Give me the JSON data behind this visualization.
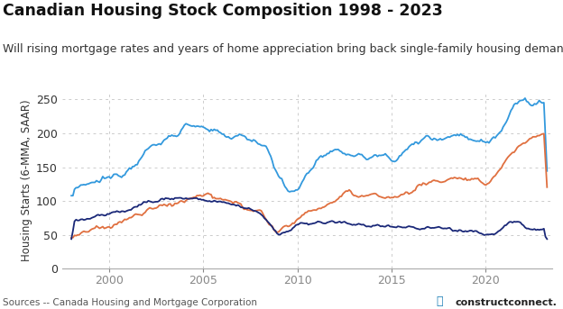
{
  "title": "Canadian Housing Stock Composition 1998 - 2023",
  "subtitle": "Will rising mortgage rates and years of home appreciation bring back single-family housing demand?",
  "ylabel": "Housing Starts (6‑MMA, SAAR)",
  "source": "Sources -- Canada Housing and Mortgage Corporation",
  "ylim": [
    0,
    260
  ],
  "yticks": [
    0,
    50,
    100,
    150,
    200,
    250
  ],
  "xlim_start": 1997.5,
  "xlim_end": 2023.5,
  "xticks": [
    2000,
    2005,
    2010,
    2015,
    2020
  ],
  "background_color": "#ffffff",
  "grid_color": "#cccccc",
  "color_multi": "#3399dd",
  "color_single": "#e07040",
  "color_dark": "#1a2878",
  "line_width": 1.3,
  "title_fontsize": 12.5,
  "subtitle_fontsize": 9,
  "ylabel_fontsize": 8.5,
  "tick_fontsize": 9,
  "source_fontsize": 7.5,
  "multi_knots": {
    "years": [
      1998.0,
      1998.5,
      1999.0,
      1999.5,
      2000.0,
      2001.0,
      2002.0,
      2003.0,
      2004.0,
      2004.5,
      2005.0,
      2005.5,
      2006.0,
      2006.5,
      2007.0,
      2007.5,
      2008.0,
      2008.5,
      2009.0,
      2009.5,
      2010.0,
      2010.5,
      2011.0,
      2011.5,
      2012.0,
      2012.5,
      2013.0,
      2013.5,
      2014.0,
      2014.5,
      2015.0,
      2015.5,
      2016.0,
      2016.5,
      2017.0,
      2017.5,
      2018.0,
      2018.5,
      2019.0,
      2019.5,
      2020.0,
      2020.5,
      2021.0,
      2021.5,
      2022.0,
      2022.5,
      2023.0
    ],
    "vals": [
      115,
      118,
      125,
      130,
      133,
      148,
      175,
      190,
      210,
      215,
      205,
      200,
      198,
      196,
      195,
      192,
      190,
      175,
      135,
      112,
      115,
      140,
      160,
      170,
      168,
      175,
      168,
      165,
      165,
      168,
      165,
      165,
      180,
      190,
      195,
      195,
      195,
      198,
      195,
      192,
      185,
      195,
      215,
      245,
      255,
      238,
      245
    ]
  },
  "single_knots": {
    "years": [
      1998.0,
      1998.5,
      1999.0,
      1999.5,
      2000.0,
      2001.0,
      2002.0,
      2003.0,
      2004.0,
      2004.5,
      2005.0,
      2005.5,
      2006.0,
      2006.5,
      2007.0,
      2007.5,
      2008.0,
      2008.5,
      2009.0,
      2009.5,
      2010.0,
      2010.5,
      2011.0,
      2011.5,
      2012.0,
      2012.5,
      2013.0,
      2013.5,
      2014.0,
      2014.5,
      2015.0,
      2015.5,
      2016.0,
      2016.5,
      2017.0,
      2017.5,
      2018.0,
      2018.5,
      2019.0,
      2019.5,
      2020.0,
      2020.5,
      2021.0,
      2021.5,
      2022.0,
      2022.5,
      2023.0
    ],
    "vals": [
      50,
      52,
      55,
      58,
      63,
      73,
      85,
      95,
      100,
      105,
      108,
      105,
      100,
      97,
      95,
      90,
      85,
      68,
      52,
      62,
      75,
      85,
      90,
      92,
      100,
      115,
      110,
      108,
      105,
      108,
      105,
      108,
      115,
      122,
      128,
      130,
      132,
      135,
      130,
      128,
      125,
      138,
      158,
      175,
      185,
      195,
      198
    ]
  },
  "dark_knots": {
    "years": [
      1998.0,
      1998.5,
      1999.0,
      1999.5,
      2000.0,
      2001.0,
      2002.0,
      2003.0,
      2004.0,
      2004.5,
      2005.0,
      2005.5,
      2006.0,
      2006.5,
      2007.0,
      2007.5,
      2008.0,
      2008.5,
      2009.0,
      2009.5,
      2010.0,
      2010.5,
      2011.0,
      2011.5,
      2012.0,
      2012.5,
      2013.0,
      2013.5,
      2014.0,
      2014.5,
      2015.0,
      2015.5,
      2016.0,
      2016.5,
      2017.0,
      2017.5,
      2018.0,
      2018.5,
      2019.0,
      2019.5,
      2020.0,
      2020.5,
      2021.0,
      2021.5,
      2022.0,
      2022.5,
      2023.0
    ],
    "vals": [
      72,
      73,
      75,
      78,
      80,
      88,
      98,
      103,
      105,
      104,
      102,
      100,
      98,
      95,
      92,
      88,
      82,
      68,
      50,
      55,
      65,
      67,
      68,
      68,
      67,
      67,
      66,
      65,
      64,
      63,
      62,
      61,
      60,
      60,
      60,
      59,
      59,
      58,
      57,
      55,
      50,
      53,
      62,
      70,
      65,
      58,
      58
    ]
  }
}
